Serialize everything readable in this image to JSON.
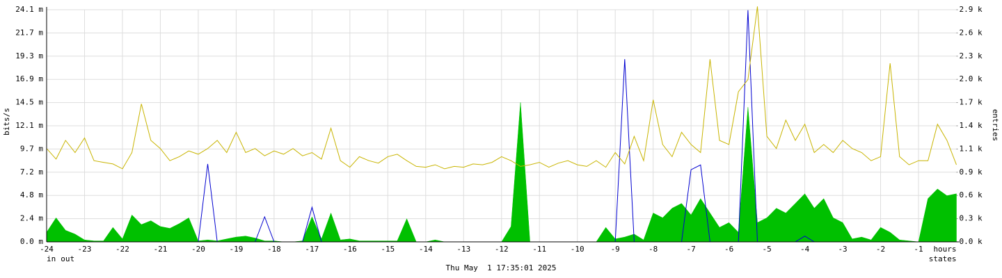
{
  "chart_data": {
    "type": "rrd",
    "y_label": "bits/s",
    "y2_label": "entries",
    "x_label": "hours",
    "footer": "Thu May  1 17:35:01 2025",
    "grid": true,
    "x": [
      -24,
      -23.75,
      -23.5,
      -23.25,
      -23,
      -22.75,
      -22.5,
      -22.25,
      -22,
      -21.75,
      -21.5,
      -21.25,
      -21,
      -20.75,
      -20.5,
      -20.25,
      -20,
      -19.75,
      -19.5,
      -19.25,
      -19,
      -18.75,
      -18.5,
      -18.25,
      -18,
      -17.75,
      -17.5,
      -17.25,
      -17,
      -16.75,
      -16.5,
      -16.25,
      -16,
      -15.75,
      -15.5,
      -15.25,
      -15,
      -14.75,
      -14.5,
      -14.25,
      -14,
      -13.75,
      -13.5,
      -13.25,
      -13,
      -12.75,
      -12.5,
      -12.25,
      -12,
      -11.75,
      -11.5,
      -11.25,
      -11,
      -10.75,
      -10.5,
      -10.25,
      -10,
      -9.75,
      -9.5,
      -9.25,
      -9,
      -8.75,
      -8.5,
      -8.25,
      -8,
      -7.75,
      -7.5,
      -7.25,
      -7,
      -6.75,
      -6.5,
      -6.25,
      -6,
      -5.75,
      -5.5,
      -5.25,
      -5,
      -4.75,
      -4.5,
      -4.25,
      -4,
      -3.75,
      -3.5,
      -3.25,
      -3,
      -2.75,
      -2.5,
      -2.25,
      -2,
      -1.75,
      -1.5,
      -1.25,
      -1,
      -0.75,
      -0.5,
      -0.25,
      0
    ],
    "xlim": [
      -24,
      0
    ],
    "xticks": [
      -24,
      -23,
      -22,
      -21,
      -20,
      -19,
      -18,
      -17,
      -16,
      -15,
      -14,
      -13,
      -12,
      -11,
      -10,
      -9,
      -8,
      -7,
      -6,
      -5,
      -4,
      -3,
      -2,
      -1
    ],
    "ylim": [
      0,
      0.02414
    ],
    "yticks": [
      {
        "value": 0,
        "label": "0.0 m"
      },
      {
        "value": 0.002414,
        "label": "2.4 m"
      },
      {
        "value": 0.004828,
        "label": "4.8 m"
      },
      {
        "value": 0.007242,
        "label": "7.2 m"
      },
      {
        "value": 0.009656,
        "label": "9.7 m"
      },
      {
        "value": 0.01207,
        "label": "12.1 m"
      },
      {
        "value": 0.014484,
        "label": "14.5 m"
      },
      {
        "value": 0.016898,
        "label": "16.9 m"
      },
      {
        "value": 0.019312,
        "label": "19.3 m"
      },
      {
        "value": 0.021726,
        "label": "21.7 m"
      },
      {
        "value": 0.02414,
        "label": "24.1 m"
      }
    ],
    "y2lim": [
      0,
      2860
    ],
    "y2ticks": [
      {
        "value": 0,
        "label": "0.0 k"
      },
      {
        "value": 286,
        "label": "0.3 k"
      },
      {
        "value": 572,
        "label": "0.6 k"
      },
      {
        "value": 858,
        "label": "0.9 k"
      },
      {
        "value": 1144,
        "label": "1.1 k"
      },
      {
        "value": 1430,
        "label": "1.4 k"
      },
      {
        "value": 1716,
        "label": "1.7 k"
      },
      {
        "value": 2002,
        "label": "2.0 k"
      },
      {
        "value": 2288,
        "label": "2.3 k"
      },
      {
        "value": 2574,
        "label": "2.6 k"
      },
      {
        "value": 2860,
        "label": "2.9 k"
      }
    ],
    "series": [
      {
        "name": "in",
        "color": "#00c000",
        "style": "area",
        "values": [
          0.001,
          0.0025,
          0.0012,
          0.0008,
          0.0002,
          0.0001,
          0.0001,
          0.0015,
          0.0003,
          0.0028,
          0.0018,
          0.0022,
          0.0016,
          0.0014,
          0.0019,
          0.0025,
          0.0001,
          0.0002,
          0.0001,
          0.0003,
          0.0005,
          0.0006,
          0.0004,
          0.0001,
          0.0001,
          0,
          0,
          0.0001,
          0.0026,
          0.0003,
          0.003,
          0.0002,
          0.0003,
          0.0001,
          0.0001,
          0.0001,
          0.0001,
          0.0001,
          0.0024,
          0,
          0,
          0.0002,
          0,
          0,
          0,
          0,
          0,
          0,
          0,
          0.0016,
          0.0145,
          0,
          0,
          0,
          0,
          0,
          0,
          0,
          0,
          0.0015,
          0.0003,
          0.0005,
          0.0008,
          0.0002,
          0.003,
          0.0025,
          0.0035,
          0.004,
          0.0028,
          0.0045,
          0.003,
          0.0015,
          0.002,
          0.001,
          0.014,
          0.002,
          0.0025,
          0.0035,
          0.003,
          0.004,
          0.005,
          0.0035,
          0.0045,
          0.0025,
          0.002,
          0.0003,
          0.0005,
          0.0002,
          0.0015,
          0.001,
          0.0002,
          0.0001,
          0,
          0.0045,
          0.0055,
          0.0048,
          0.005
        ]
      },
      {
        "name": "out",
        "color": "#0000d0",
        "style": "line",
        "values": [
          0,
          0,
          0,
          0,
          0,
          0,
          0,
          0,
          0,
          0,
          0,
          0,
          0,
          0,
          0,
          0,
          0,
          0.0081,
          0,
          0,
          0,
          0,
          0,
          0.0026,
          0,
          0,
          0,
          0,
          0.0036,
          0,
          0,
          0,
          0,
          0,
          0,
          0,
          0,
          0,
          0,
          0,
          0,
          0,
          0,
          0,
          0,
          0,
          0,
          0,
          0,
          0,
          0,
          0,
          0,
          0,
          0,
          0,
          0,
          0,
          0,
          0,
          0,
          0.019,
          0,
          0,
          0,
          0,
          0,
          0,
          0.0075,
          0.008,
          0,
          0,
          0,
          0,
          0.0241,
          0,
          0,
          0,
          0,
          0,
          0.0006,
          0,
          0,
          0,
          0,
          0,
          0,
          0,
          0,
          0,
          0,
          0,
          0,
          0,
          0,
          0,
          0
        ]
      },
      {
        "name": "states",
        "color": "#c8b400",
        "style": "line",
        "axis": "y2",
        "values": [
          1150,
          1020,
          1250,
          1100,
          1280,
          1000,
          980,
          960,
          900,
          1100,
          1700,
          1250,
          1150,
          1000,
          1050,
          1120,
          1080,
          1150,
          1250,
          1100,
          1350,
          1100,
          1150,
          1060,
          1120,
          1080,
          1150,
          1060,
          1100,
          1020,
          1400,
          1000,
          920,
          1050,
          1000,
          970,
          1050,
          1080,
          1000,
          930,
          920,
          950,
          900,
          930,
          920,
          960,
          950,
          980,
          1050,
          1000,
          930,
          950,
          980,
          920,
          970,
          1000,
          950,
          930,
          1000,
          920,
          1100,
          960,
          1300,
          1000,
          1750,
          1200,
          1050,
          1350,
          1200,
          1100,
          2250,
          1250,
          1200,
          1850,
          2000,
          2900,
          1300,
          1150,
          1500,
          1250,
          1450,
          1100,
          1200,
          1100,
          1250,
          1150,
          1100,
          1000,
          1050,
          2200,
          1050,
          950,
          1000,
          1000,
          1450,
          1250,
          950
        ]
      }
    ]
  }
}
